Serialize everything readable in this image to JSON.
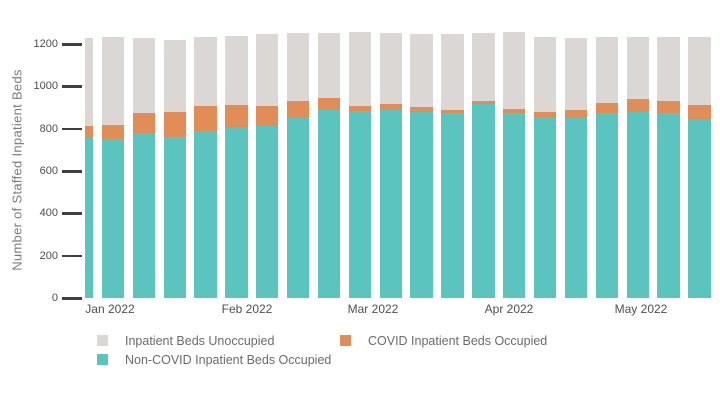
{
  "chart_data": {
    "type": "bar",
    "stacked": true,
    "title": "",
    "xlabel": "",
    "ylabel": "Number of Staffed Inpatient Beds",
    "ylim": [
      0,
      1270
    ],
    "yticks": [
      0,
      200,
      400,
      600,
      800,
      1000,
      1200
    ],
    "x_unit": "week",
    "x_tick_labels": [
      "Jan 2022",
      "Feb 2022",
      "Mar 2022",
      "Apr 2022",
      "May 2022"
    ],
    "grid": false,
    "legend_position": "bottom",
    "series": [
      {
        "key": "non-covid-occupied",
        "name": "Non-COVID Inpatient Beds Occupied",
        "color": "#5BC4BE",
        "values": [
          755,
          753,
          778,
          760,
          788,
          806,
          813,
          849,
          888,
          883,
          888,
          881,
          872,
          915,
          876,
          853,
          850,
          875,
          881,
          872,
          845
        ]
      },
      {
        "key": "covid-occupied",
        "name": "COVID Inpatient Beds Occupied",
        "color": "#E08D58",
        "values": [
          58,
          65,
          95,
          118,
          117,
          105,
          95,
          80,
          57,
          22,
          27,
          20,
          16,
          15,
          18,
          26,
          38,
          48,
          58,
          60,
          68
        ]
      },
      {
        "key": "unoccupied",
        "name": "Inpatient Beds Unoccupied",
        "color": "#DBD7D5",
        "values": [
          417,
          415,
          355,
          340,
          329,
          329,
          340,
          324,
          305,
          353,
          337,
          346,
          359,
          322,
          364,
          355,
          340,
          309,
          293,
          300,
          322
        ]
      }
    ]
  },
  "colors": {
    "background": "#ffffff",
    "tick_mark": "#3f3f3f",
    "tick_label": "#4d4d4d",
    "axis_title": "#7b7b7b",
    "legend_text": "#6b6b6b"
  }
}
